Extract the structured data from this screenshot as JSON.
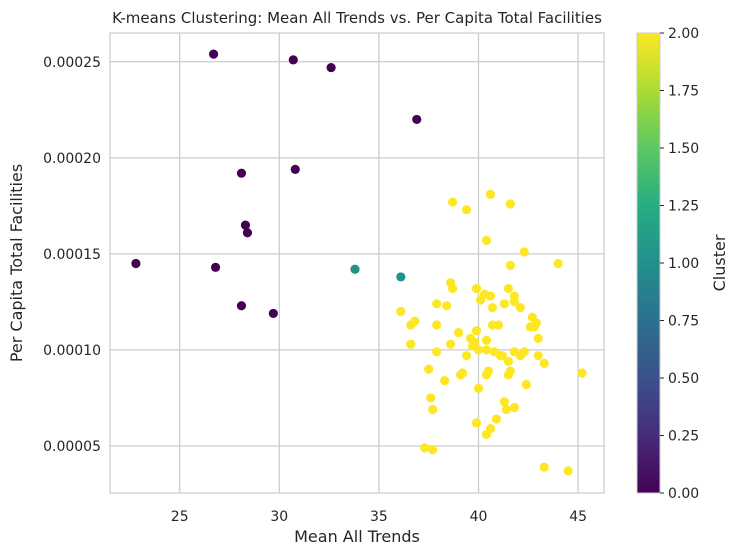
{
  "chart_data": {
    "type": "scatter",
    "title": "K-means Clustering: Mean All Trends vs. Per Capita Total Facilities",
    "xlabel": "Mean All Trends",
    "ylabel": "Per Capita Total Facilities",
    "xlim": [
      21.5,
      46.3
    ],
    "ylim": [
      2.55e-05,
      0.000265
    ],
    "x_ticks": [
      25,
      30,
      35,
      40,
      45
    ],
    "x_tick_labels": [
      "25",
      "30",
      "35",
      "40",
      "45"
    ],
    "y_ticks": [
      5e-05,
      0.0001,
      0.00015,
      0.0002,
      0.00025
    ],
    "y_tick_labels": [
      "0.00005",
      "0.00010",
      "0.00015",
      "0.00020",
      "0.00025"
    ],
    "grid": true,
    "colormap": "viridis",
    "colorbar": {
      "label": "Cluster",
      "min": 0,
      "max": 2,
      "ticks": [
        "0.00",
        "0.25",
        "0.50",
        "0.75",
        "1.00",
        "1.25",
        "1.50",
        "1.75",
        "2.00"
      ]
    },
    "series": [
      {
        "cluster": 0,
        "color": "#440154",
        "points": [
          [
            26.7,
            0.000254
          ],
          [
            30.7,
            0.000251
          ],
          [
            32.6,
            0.000247
          ],
          [
            36.9,
            0.00022
          ],
          [
            28.1,
            0.000192
          ],
          [
            30.8,
            0.000194
          ],
          [
            28.3,
            0.000165
          ],
          [
            28.4,
            0.000161
          ],
          [
            22.8,
            0.000145
          ],
          [
            26.8,
            0.000143
          ],
          [
            28.1,
            0.000123
          ],
          [
            29.7,
            0.000119
          ]
        ]
      },
      {
        "cluster": 1,
        "color": "#21918c",
        "points": [
          [
            33.8,
            0.000142
          ],
          [
            36.1,
            0.000138
          ]
        ]
      },
      {
        "cluster": 2,
        "color": "#fde725",
        "points": [
          [
            40.6,
            0.000181
          ],
          [
            38.7,
            0.000177
          ],
          [
            39.4,
            0.000173
          ],
          [
            41.6,
            0.000176
          ],
          [
            40.4,
            0.000157
          ],
          [
            42.3,
            0.000151
          ],
          [
            44.0,
            0.000145
          ],
          [
            41.6,
            0.000144
          ],
          [
            38.6,
            0.000135
          ],
          [
            38.7,
            0.000132
          ],
          [
            39.9,
            0.000132
          ],
          [
            41.5,
            0.000132
          ],
          [
            40.3,
            0.000129
          ],
          [
            40.6,
            0.000128
          ],
          [
            41.8,
            0.000128
          ],
          [
            40.1,
            0.000126
          ],
          [
            41.8,
            0.000125
          ],
          [
            36.1,
            0.00012
          ],
          [
            37.9,
            0.000124
          ],
          [
            38.4,
            0.000123
          ],
          [
            40.7,
            0.000122
          ],
          [
            41.3,
            0.000124
          ],
          [
            42.1,
            0.000122
          ],
          [
            36.8,
            0.000115
          ],
          [
            36.6,
            0.000113
          ],
          [
            37.9,
            0.000113
          ],
          [
            40.7,
            0.000113
          ],
          [
            41.0,
            0.000113
          ],
          [
            42.7,
            0.000117
          ],
          [
            42.9,
            0.000114
          ],
          [
            42.6,
            0.000112
          ],
          [
            42.8,
            0.000112
          ],
          [
            39.0,
            0.000109
          ],
          [
            39.9,
            0.00011
          ],
          [
            43.0,
            0.000106
          ],
          [
            36.6,
            0.000103
          ],
          [
            38.6,
            0.000103
          ],
          [
            39.6,
            0.000106
          ],
          [
            39.8,
            0.000104
          ],
          [
            40.4,
            0.000105
          ],
          [
            39.7,
            0.000102
          ],
          [
            40.0,
            0.0001
          ],
          [
            37.9,
            9.9e-05
          ],
          [
            39.4,
            9.7e-05
          ],
          [
            40.4,
            0.0001
          ],
          [
            40.8,
            9.9e-05
          ],
          [
            41.1,
            9.7e-05
          ],
          [
            41.2,
            9.7e-05
          ],
          [
            41.8,
            9.9e-05
          ],
          [
            42.1,
            9.7e-05
          ],
          [
            42.3,
            9.9e-05
          ],
          [
            43.0,
            9.7e-05
          ],
          [
            43.3,
            9.3e-05
          ],
          [
            41.5,
            9.4e-05
          ],
          [
            37.5,
            9e-05
          ],
          [
            39.1,
            8.7e-05
          ],
          [
            39.2,
            8.8e-05
          ],
          [
            40.4,
            8.7e-05
          ],
          [
            40.5,
            8.9e-05
          ],
          [
            41.5,
            8.7e-05
          ],
          [
            41.6,
            8.9e-05
          ],
          [
            45.2,
            8.8e-05
          ],
          [
            38.3,
            8.4e-05
          ],
          [
            42.4,
            8.2e-05
          ],
          [
            40.0,
            8e-05
          ],
          [
            37.6,
            7.5e-05
          ],
          [
            37.7,
            6.9e-05
          ],
          [
            41.3,
            7.3e-05
          ],
          [
            41.4,
            6.9e-05
          ],
          [
            41.8,
            7e-05
          ],
          [
            40.9,
            6.4e-05
          ],
          [
            39.9,
            6.2e-05
          ],
          [
            40.6,
            5.9e-05
          ],
          [
            40.4,
            5.6e-05
          ],
          [
            37.3,
            4.9e-05
          ],
          [
            37.7,
            4.8e-05
          ],
          [
            43.3,
            3.9e-05
          ],
          [
            44.5,
            3.7e-05
          ]
        ]
      }
    ]
  }
}
